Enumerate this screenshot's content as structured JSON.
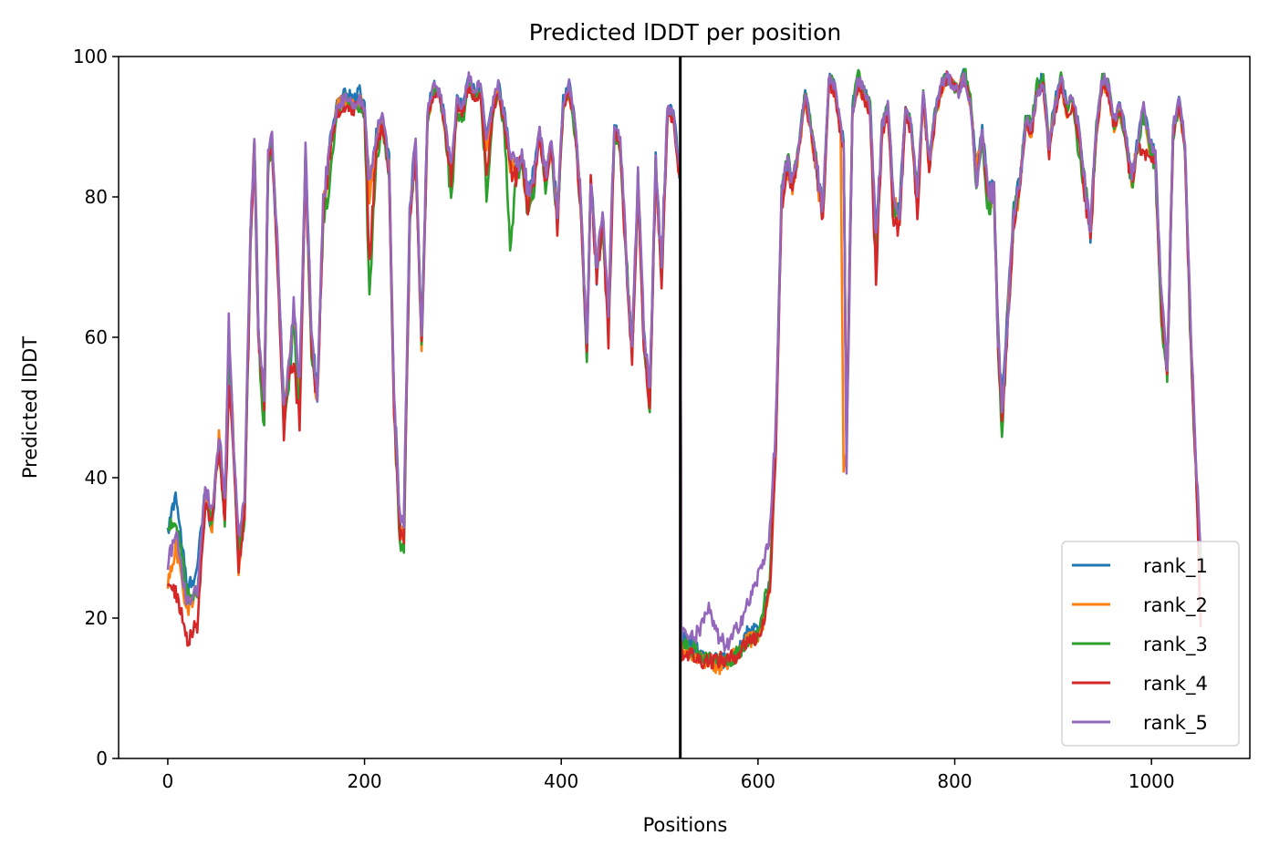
{
  "chart_data": {
    "type": "line",
    "title": "Predicted lDDT per position",
    "xlabel": "Positions",
    "ylabel": "Predicted lDDT",
    "xlim": [
      -50,
      1100
    ],
    "ylim": [
      0,
      100
    ],
    "xticks": [
      0,
      200,
      400,
      600,
      800,
      1000
    ],
    "yticks": [
      0,
      20,
      40,
      60,
      80,
      100
    ],
    "grid": false,
    "legend_position": "lower-right",
    "divider_x": 521,
    "anchor_x": [
      0,
      8,
      20,
      30,
      38,
      45,
      52,
      58,
      62,
      66,
      72,
      78,
      84,
      88,
      92,
      98,
      102,
      106,
      112,
      118,
      124,
      128,
      134,
      140,
      146,
      152,
      158,
      165,
      172,
      180,
      188,
      195,
      200,
      205,
      212,
      218,
      225,
      230,
      236,
      240,
      246,
      252,
      258,
      264,
      270,
      276,
      282,
      288,
      294,
      300,
      306,
      312,
      318,
      324,
      330,
      336,
      342,
      348,
      354,
      360,
      366,
      372,
      378,
      384,
      390,
      396,
      402,
      408,
      414,
      420,
      426,
      430,
      436,
      442,
      448,
      454,
      460,
      466,
      472,
      478,
      484,
      490,
      496,
      502,
      508,
      514,
      521,
      522,
      530,
      540,
      550,
      560,
      570,
      580,
      590,
      598,
      605,
      612,
      618,
      624,
      630,
      636,
      642,
      648,
      654,
      660,
      666,
      672,
      678,
      684,
      687,
      690,
      696,
      702,
      708,
      714,
      720,
      726,
      732,
      738,
      744,
      750,
      756,
      762,
      768,
      774,
      780,
      786,
      792,
      798,
      804,
      810,
      816,
      822,
      828,
      834,
      840,
      844,
      848,
      854,
      860,
      866,
      872,
      878,
      884,
      890,
      896,
      902,
      908,
      914,
      920,
      926,
      932,
      938,
      944,
      950,
      956,
      962,
      968,
      974,
      980,
      986,
      992,
      998,
      1004,
      1010,
      1016,
      1022,
      1028,
      1034,
      1040,
      1046,
      1050
    ],
    "series": [
      {
        "name": "rank_1",
        "color": "#1f77b4",
        "values": [
          32,
          38,
          24,
          27,
          38,
          32,
          46,
          35,
          60,
          47,
          30,
          36,
          74,
          88,
          62,
          49,
          85,
          88,
          70,
          50,
          55,
          64,
          52,
          86,
          60,
          52,
          78,
          88,
          93,
          95,
          94,
          95,
          93,
          81,
          89,
          92,
          85,
          52,
          33,
          33,
          78,
          88,
          58,
          92,
          96,
          95,
          91,
          82,
          94,
          93,
          97,
          95,
          96,
          88,
          93,
          96,
          92,
          86,
          84,
          86,
          80,
          83,
          90,
          83,
          88,
          77,
          94,
          96,
          91,
          79,
          57,
          83,
          69,
          77,
          63,
          90,
          88,
          71,
          59,
          83,
          61,
          51,
          85,
          70,
          93,
          92,
          83,
          17,
          17,
          15,
          14,
          14,
          14,
          15,
          18,
          18,
          20,
          25,
          45,
          80,
          85,
          82,
          88,
          95,
          90,
          84,
          78,
          97,
          96,
          90,
          88,
          45,
          93,
          97,
          95,
          93,
          74,
          90,
          93,
          80,
          78,
          93,
          90,
          80,
          95,
          85,
          92,
          96,
          97,
          96,
          95,
          98,
          94,
          84,
          90,
          80,
          82,
          61,
          51,
          64,
          78,
          82,
          91,
          90,
          96,
          97,
          88,
          94,
          97,
          93,
          94,
          90,
          82,
          75,
          90,
          97,
          96,
          91,
          93,
          89,
          83,
          88,
          93,
          88,
          86,
          65,
          55,
          90,
          94,
          88,
          60,
          40,
          30
        ]
      },
      {
        "name": "rank_2",
        "color": "#ff7f0e",
        "values": [
          25,
          30,
          21,
          24,
          37,
          33,
          46,
          35,
          61,
          48,
          27,
          35,
          74,
          88,
          61,
          49,
          85,
          88,
          70,
          48,
          57,
          63,
          51,
          85,
          59,
          51,
          78,
          87,
          93,
          94,
          93,
          94,
          92,
          80,
          88,
          91,
          84,
          51,
          32,
          33,
          77,
          87,
          57,
          91,
          95,
          95,
          90,
          81,
          93,
          92,
          96,
          94,
          95,
          87,
          92,
          95,
          91,
          85,
          83,
          85,
          79,
          82,
          89,
          82,
          87,
          76,
          93,
          95,
          90,
          78,
          58,
          82,
          70,
          76,
          63,
          89,
          87,
          72,
          58,
          82,
          60,
          52,
          84,
          69,
          92,
          91,
          82,
          16,
          15,
          14,
          14,
          13,
          14,
          15,
          17,
          17,
          19,
          24,
          44,
          79,
          84,
          81,
          87,
          94,
          89,
          83,
          77,
          96,
          95,
          89,
          40,
          44,
          92,
          96,
          94,
          92,
          72,
          89,
          92,
          79,
          77,
          92,
          89,
          79,
          94,
          84,
          91,
          95,
          97,
          96,
          95,
          98,
          93,
          83,
          89,
          79,
          81,
          60,
          49,
          63,
          77,
          81,
          90,
          89,
          95,
          96,
          87,
          93,
          96,
          92,
          94,
          89,
          81,
          74,
          89,
          96,
          95,
          90,
          92,
          88,
          82,
          87,
          92,
          87,
          85,
          64,
          56,
          89,
          93,
          87,
          60,
          39,
          20
        ]
      },
      {
        "name": "rank_3",
        "color": "#2ca02c",
        "values": [
          33,
          34,
          23,
          23,
          36,
          34,
          45,
          34,
          59,
          46,
          29,
          34,
          72,
          87,
          60,
          47,
          84,
          88,
          69,
          48,
          55,
          62,
          50,
          84,
          58,
          51,
          77,
          82,
          92,
          94,
          92,
          93,
          91,
          66,
          85,
          90,
          83,
          50,
          30,
          30,
          76,
          86,
          60,
          90,
          95,
          95,
          89,
          80,
          92,
          91,
          96,
          94,
          95,
          80,
          91,
          95,
          90,
          72,
          82,
          85,
          78,
          81,
          89,
          81,
          87,
          76,
          93,
          95,
          89,
          78,
          57,
          82,
          69,
          76,
          62,
          89,
          87,
          71,
          58,
          82,
          60,
          50,
          84,
          68,
          92,
          91,
          82,
          17,
          16,
          15,
          14,
          14,
          14,
          15,
          17,
          17,
          21,
          26,
          45,
          82,
          85,
          82,
          88,
          95,
          90,
          84,
          78,
          97,
          96,
          90,
          88,
          45,
          93,
          98,
          95,
          93,
          70,
          90,
          93,
          78,
          77,
          93,
          90,
          80,
          95,
          85,
          92,
          96,
          97,
          96,
          95,
          98,
          94,
          82,
          88,
          78,
          80,
          59,
          47,
          62,
          77,
          82,
          91,
          91,
          96,
          97,
          87,
          93,
          97,
          93,
          94,
          86,
          82,
          75,
          90,
          97,
          96,
          90,
          92,
          88,
          82,
          87,
          92,
          87,
          84,
          63,
          54,
          88,
          93,
          87,
          58,
          38,
          28
        ]
      },
      {
        "name": "rank_4",
        "color": "#d62728",
        "values": [
          24,
          24,
          17,
          19,
          36,
          34,
          45,
          33,
          53,
          46,
          27,
          35,
          72,
          87,
          61,
          49,
          85,
          87,
          69,
          46,
          56,
          56,
          48,
          84,
          59,
          50,
          78,
          86,
          92,
          93,
          92,
          94,
          92,
          71,
          87,
          90,
          84,
          50,
          32,
          31,
          76,
          87,
          59,
          91,
          95,
          95,
          90,
          82,
          93,
          92,
          96,
          94,
          95,
          82,
          92,
          95,
          91,
          84,
          83,
          85,
          79,
          82,
          89,
          82,
          87,
          76,
          93,
          95,
          90,
          78,
          57,
          82,
          69,
          76,
          60,
          89,
          87,
          71,
          57,
          82,
          59,
          49,
          84,
          68,
          92,
          91,
          82,
          15,
          15,
          14,
          14,
          14,
          14,
          15,
          17,
          17,
          19,
          24,
          44,
          79,
          84,
          81,
          87,
          94,
          89,
          83,
          77,
          96,
          95,
          89,
          87,
          44,
          92,
          96,
          94,
          92,
          68,
          89,
          92,
          76,
          76,
          92,
          89,
          78,
          94,
          84,
          91,
          95,
          97,
          96,
          95,
          97,
          93,
          83,
          89,
          79,
          81,
          59,
          48,
          62,
          77,
          81,
          90,
          89,
          95,
          96,
          86,
          92,
          96,
          92,
          93,
          88,
          81,
          74,
          89,
          96,
          95,
          90,
          92,
          88,
          82,
          87,
          86,
          86,
          85,
          64,
          55,
          89,
          93,
          87,
          59,
          38,
          18
        ]
      },
      {
        "name": "rank_5",
        "color": "#9467bd",
        "values": [
          28,
          32,
          22,
          24,
          39,
          35,
          47,
          36,
          62,
          48,
          31,
          37,
          75,
          88,
          62,
          50,
          86,
          89,
          71,
          49,
          58,
          65,
          53,
          87,
          61,
          52,
          79,
          88,
          93,
          94,
          93,
          94,
          92,
          82,
          89,
          92,
          85,
          52,
          34,
          34,
          78,
          88,
          59,
          92,
          96,
          95,
          91,
          84,
          94,
          93,
          97,
          95,
          96,
          88,
          93,
          96,
          92,
          86,
          84,
          86,
          81,
          83,
          90,
          83,
          88,
          78,
          94,
          96,
          91,
          80,
          58,
          83,
          70,
          77,
          64,
          90,
          88,
          72,
          59,
          83,
          61,
          52,
          85,
          71,
          93,
          92,
          83,
          18,
          17,
          18,
          21,
          17,
          16,
          19,
          22,
          25,
          28,
          32,
          47,
          80,
          85,
          82,
          88,
          95,
          90,
          84,
          78,
          97,
          96,
          90,
          88,
          42,
          92,
          97,
          95,
          93,
          74,
          90,
          93,
          80,
          78,
          93,
          90,
          80,
          95,
          85,
          92,
          96,
          97,
          96,
          95,
          97,
          93,
          82,
          89,
          80,
          81,
          60,
          50,
          63,
          78,
          82,
          91,
          90,
          95,
          96,
          87,
          93,
          97,
          93,
          94,
          90,
          82,
          75,
          90,
          97,
          96,
          91,
          93,
          89,
          83,
          88,
          93,
          88,
          86,
          66,
          56,
          90,
          94,
          88,
          61,
          40,
          30
        ]
      }
    ]
  }
}
